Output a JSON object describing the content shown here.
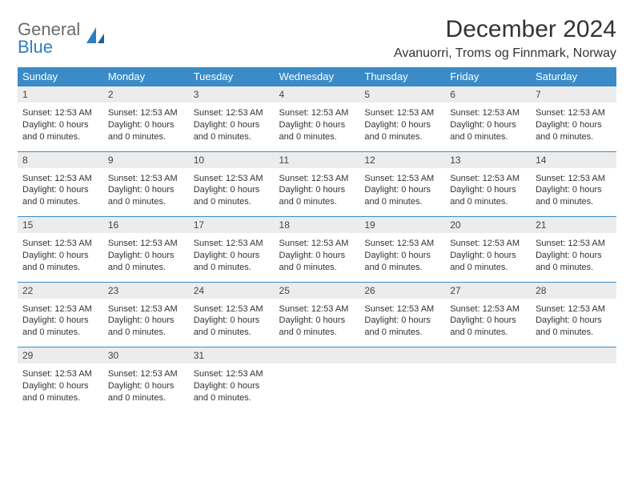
{
  "logo": {
    "word1": "General",
    "word2": "Blue"
  },
  "title": "December 2024",
  "location": "Avanuorri, Troms og Finnmark, Norway",
  "colors": {
    "header_bg": "#3b8bc8",
    "header_text": "#ffffff",
    "daynum_bg": "#ececec",
    "body_text": "#333333",
    "logo_gray": "#6b6b6b",
    "logo_blue": "#2d7fc1",
    "rule": "#3b8bc8",
    "page_bg": "#ffffff"
  },
  "weekdays": [
    "Sunday",
    "Monday",
    "Tuesday",
    "Wednesday",
    "Thursday",
    "Friday",
    "Saturday"
  ],
  "cell_text": {
    "line1": "Sunset: 12:53 AM",
    "line2": "Daylight: 0 hours",
    "line3": "and 0 minutes."
  },
  "weeks": [
    [
      {
        "n": "1"
      },
      {
        "n": "2"
      },
      {
        "n": "3"
      },
      {
        "n": "4"
      },
      {
        "n": "5"
      },
      {
        "n": "6"
      },
      {
        "n": "7"
      }
    ],
    [
      {
        "n": "8"
      },
      {
        "n": "9"
      },
      {
        "n": "10"
      },
      {
        "n": "11"
      },
      {
        "n": "12"
      },
      {
        "n": "13"
      },
      {
        "n": "14"
      }
    ],
    [
      {
        "n": "15"
      },
      {
        "n": "16"
      },
      {
        "n": "17"
      },
      {
        "n": "18"
      },
      {
        "n": "19"
      },
      {
        "n": "20"
      },
      {
        "n": "21"
      }
    ],
    [
      {
        "n": "22"
      },
      {
        "n": "23"
      },
      {
        "n": "24"
      },
      {
        "n": "25"
      },
      {
        "n": "26"
      },
      {
        "n": "27"
      },
      {
        "n": "28"
      }
    ],
    [
      {
        "n": "29"
      },
      {
        "n": "30"
      },
      {
        "n": "31"
      },
      {
        "blank": true
      },
      {
        "blank": true
      },
      {
        "blank": true
      },
      {
        "blank": true
      }
    ]
  ]
}
